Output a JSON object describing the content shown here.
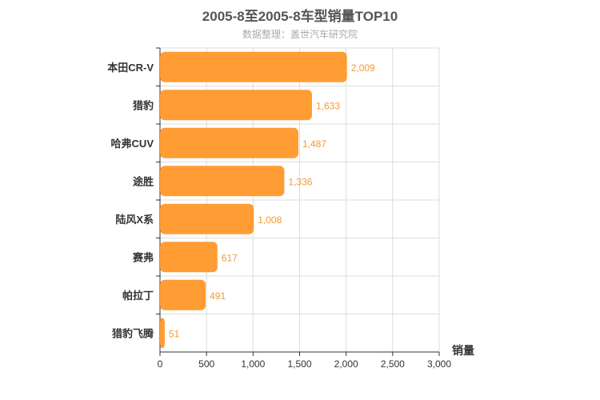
{
  "chart_data": {
    "type": "bar",
    "orientation": "horizontal",
    "title": "2005-8至2005-8车型销量TOP10",
    "subtitle": "数据整理：盖世汽车研究院",
    "categories": [
      "本田CR-V",
      "猎豹",
      "哈弗CUV",
      "途胜",
      "陆风X系",
      "赛弗",
      "帕拉丁",
      "猎豹飞腾"
    ],
    "values": [
      2009,
      1633,
      1487,
      1336,
      1008,
      617,
      491,
      51
    ],
    "value_labels": [
      "2,009",
      "1,633",
      "1,487",
      "1,336",
      "1,008",
      "617",
      "491",
      "51"
    ],
    "xlabel": "销量",
    "ylabel": "",
    "xlim": [
      0,
      3000
    ],
    "xticks": [
      0,
      500,
      1000,
      1500,
      2000,
      2500,
      3000
    ],
    "xtick_labels": [
      "0",
      "500",
      "1,000",
      "1,500",
      "2,000",
      "2,500",
      "3,000"
    ],
    "grid": true,
    "bar_color": "#ff9c33",
    "label_color": "#f29a35"
  }
}
